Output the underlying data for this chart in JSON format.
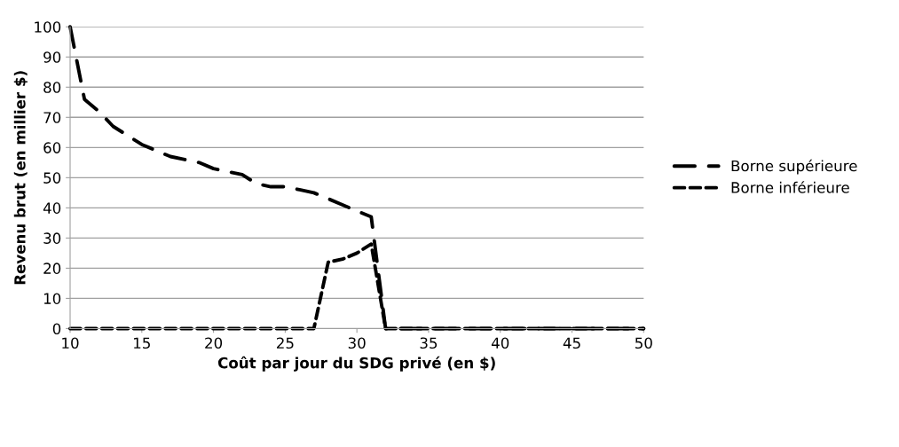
{
  "chart_data": {
    "type": "line",
    "xlabel": "Coût par jour du SDG privé (en $)",
    "ylabel": "Revenu brut (en millier $)",
    "x": [
      10,
      11,
      12,
      13,
      14,
      15,
      16,
      17,
      18,
      19,
      20,
      21,
      22,
      23,
      24,
      25,
      26,
      27,
      28,
      29,
      30,
      31,
      32,
      33,
      34,
      35,
      36,
      37,
      38,
      39,
      40,
      41,
      42,
      43,
      44,
      45,
      46,
      47,
      48,
      49,
      50
    ],
    "series": [
      {
        "name": "Borne supérieure",
        "color": "#000000",
        "line_style": "dashed",
        "values": [
          100,
          76,
          72,
          67,
          64,
          61,
          59,
          57,
          56,
          55,
          53,
          52,
          51,
          48,
          47,
          47,
          46,
          45,
          43,
          41,
          39,
          37,
          0,
          0,
          0,
          0,
          0,
          0,
          0,
          0,
          0,
          0,
          0,
          0,
          0,
          0,
          0,
          0,
          0,
          0,
          0
        ]
      },
      {
        "name": "Borne inférieure",
        "color": "#000000",
        "line_style": "dotted",
        "values": [
          0,
          0,
          0,
          0,
          0,
          0,
          0,
          0,
          0,
          0,
          0,
          0,
          0,
          0,
          0,
          0,
          0,
          0,
          22,
          23,
          25,
          28,
          0,
          0,
          0,
          0,
          0,
          0,
          0,
          0,
          0,
          0,
          0,
          0,
          0,
          0,
          0,
          0,
          0,
          0,
          0
        ]
      }
    ],
    "xlim": [
      10,
      50
    ],
    "xticks": [
      10,
      15,
      20,
      25,
      30,
      35,
      40,
      45,
      50
    ],
    "ylim": [
      0,
      100
    ],
    "yticks": [
      0,
      10,
      20,
      30,
      40,
      50,
      60,
      70,
      80,
      90,
      100
    ],
    "grid": "y",
    "legend": "right",
    "marker": "none"
  }
}
